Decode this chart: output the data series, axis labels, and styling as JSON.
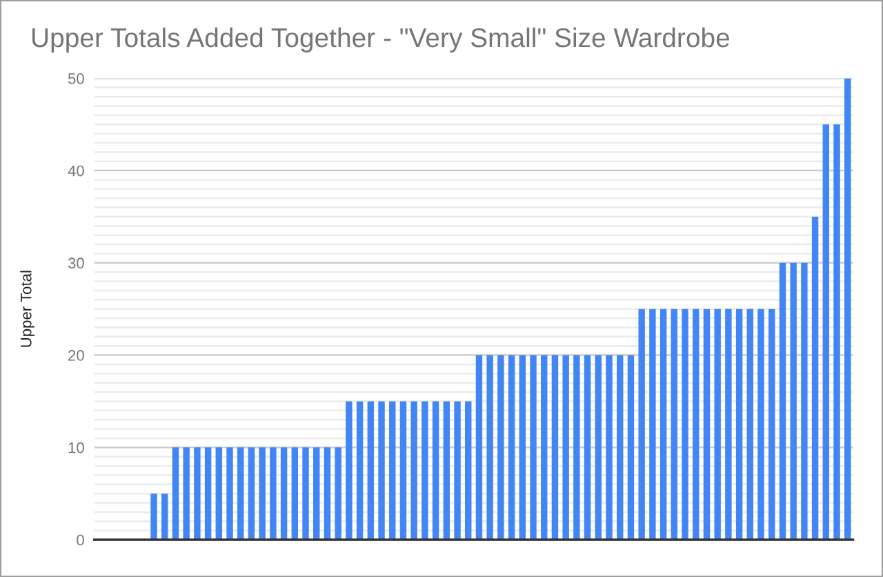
{
  "chart_data": {
    "type": "bar",
    "title": "Upper Totals Added Together - \"Very Small\" Size Wardrobe",
    "ylabel": "Upper Total",
    "categories": [
      null,
      null,
      null,
      null,
      null,
      null,
      null,
      null,
      null,
      null,
      null,
      null,
      null,
      null,
      null,
      null,
      null,
      null,
      null,
      null,
      null,
      null,
      null,
      null,
      null,
      null,
      null,
      null,
      null,
      null,
      null,
      null,
      null,
      null,
      null,
      null,
      null,
      null,
      null,
      null,
      null,
      null,
      null,
      null,
      null,
      null,
      null,
      null,
      null,
      null,
      null,
      null,
      null,
      null,
      null,
      null,
      null,
      null,
      null,
      null,
      null,
      null,
      null,
      null,
      null,
      null,
      null,
      null,
      null,
      null
    ],
    "values": [
      null,
      null,
      null,
      null,
      null,
      5,
      5,
      10,
      10,
      10,
      10,
      10,
      10,
      10,
      10,
      10,
      10,
      10,
      10,
      10,
      10,
      10,
      10,
      15,
      15,
      15,
      15,
      15,
      15,
      15,
      15,
      15,
      15,
      15,
      15,
      20,
      20,
      20,
      20,
      20,
      20,
      20,
      20,
      20,
      20,
      20,
      20,
      20,
      20,
      20,
      25,
      25,
      25,
      25,
      25,
      25,
      25,
      25,
      25,
      25,
      25,
      25,
      25,
      30,
      30,
      30,
      35,
      45,
      45,
      50
    ],
    "color": "#4285f4",
    "ylim": [
      0,
      50
    ],
    "yticks": [
      0,
      {
        "value": 1,
        "label": null
      },
      {
        "value": 2,
        "label": null
      },
      {
        "value": 3,
        "label": null
      },
      {
        "value": 4,
        "label": null
      },
      {
        "value": 5,
        "label": null
      },
      {
        "value": 6,
        "label": null
      },
      {
        "value": 7,
        "label": null
      },
      {
        "value": 8,
        "label": null
      },
      {
        "value": 9,
        "label": null
      },
      10,
      {
        "value": 11,
        "label": null
      },
      {
        "value": 12,
        "label": null
      },
      {
        "value": 13,
        "label": null
      },
      {
        "value": 14,
        "label": null
      },
      {
        "value": 15,
        "label": null
      },
      {
        "value": 16,
        "label": null
      },
      {
        "value": 17,
        "label": null
      },
      {
        "value": 18,
        "label": null
      },
      {
        "value": 19,
        "label": null
      },
      20,
      {
        "value": 21,
        "label": null
      },
      {
        "value": 22,
        "label": null
      },
      {
        "value": 23,
        "label": null
      },
      {
        "value": 24,
        "label": null
      },
      {
        "value": 25,
        "label": null
      },
      {
        "value": 26,
        "label": null
      },
      {
        "value": 27,
        "label": null
      },
      {
        "value": 28,
        "label": null
      },
      {
        "value": 29,
        "label": null
      },
      30,
      {
        "value": 31,
        "label": null
      },
      {
        "value": 32,
        "label": null
      },
      {
        "value": 33,
        "label": null
      },
      {
        "value": 34,
        "label": null
      },
      {
        "value": 35,
        "label": null
      },
      {
        "value": 36,
        "label": null
      },
      {
        "value": 37,
        "label": null
      },
      {
        "value": 38,
        "label": null
      },
      {
        "value": 39,
        "label": null
      },
      40,
      {
        "value": 41,
        "label": null
      },
      {
        "value": 42,
        "label": null
      },
      {
        "value": 43,
        "label": null
      },
      {
        "value": 44,
        "label": null
      },
      {
        "value": 45,
        "label": null
      },
      {
        "value": 46,
        "label": null
      },
      {
        "value": 47,
        "label": null
      },
      {
        "value": 48,
        "label": null
      },
      {
        "value": 49,
        "label": null
      },
      50
    ],
    "grid": "y"
  }
}
